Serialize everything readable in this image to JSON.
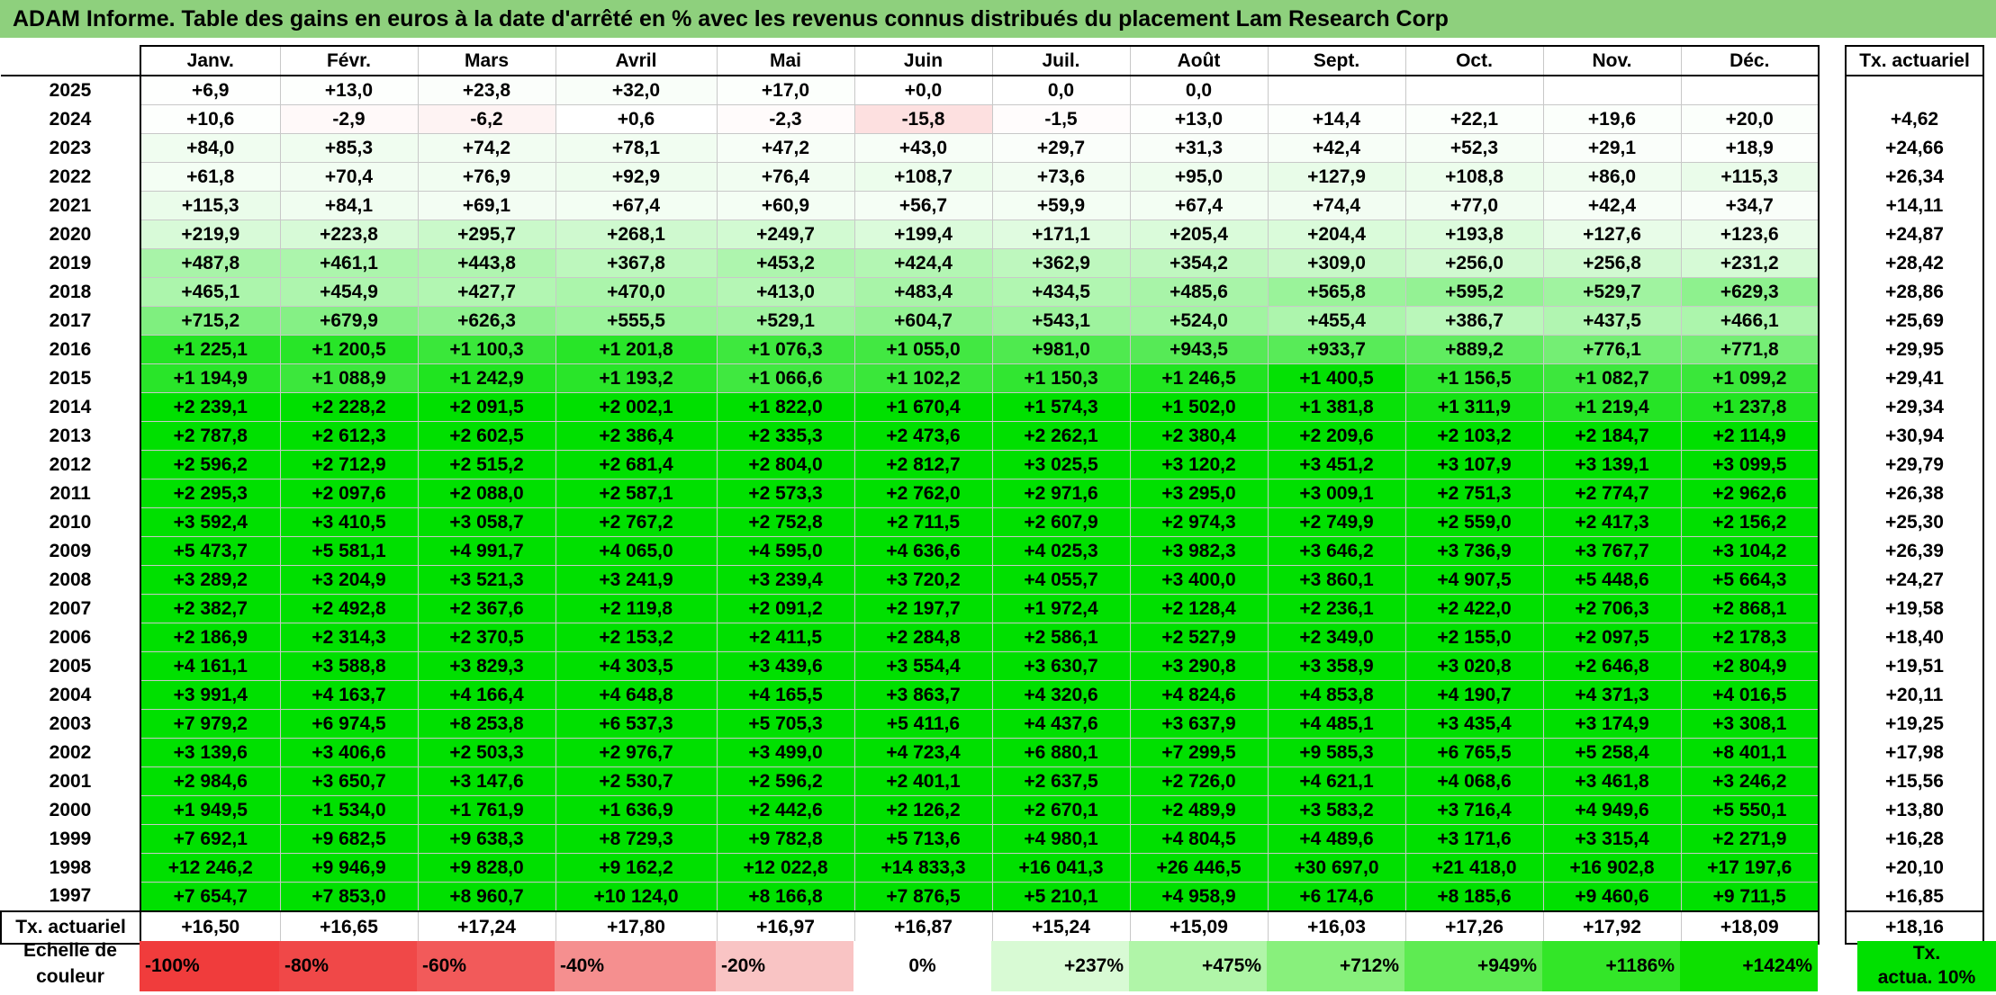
{
  "title": "ADAM Informe. Table des gains en euros à la date d'arrêté en % avec les revenus connus distribués du placement Lam Research Corp",
  "months": [
    "Janv.",
    "Févr.",
    "Mars",
    "Avril",
    "Mai",
    "Juin",
    "Juil.",
    "Août",
    "Sept.",
    "Oct.",
    "Nov.",
    "Déc."
  ],
  "tx_header": "Tx. actuariel",
  "rows": [
    {
      "year": "2025",
      "vals": [
        "+6,9",
        "+13,0",
        "+23,8",
        "+32,0",
        "+17,0",
        "+0,0",
        "0,0",
        "0,0",
        "",
        "",
        "",
        ""
      ],
      "tx": ""
    },
    {
      "year": "2024",
      "vals": [
        "+10,6",
        "-2,9",
        "-6,2",
        "+0,6",
        "-2,3",
        "-15,8",
        "-1,5",
        "+13,0",
        "+14,4",
        "+22,1",
        "+19,6",
        "+20,0"
      ],
      "tx": "+4,62"
    },
    {
      "year": "2023",
      "vals": [
        "+84,0",
        "+85,3",
        "+74,2",
        "+78,1",
        "+47,2",
        "+43,0",
        "+29,7",
        "+31,3",
        "+42,4",
        "+52,3",
        "+29,1",
        "+18,9"
      ],
      "tx": "+24,66"
    },
    {
      "year": "2022",
      "vals": [
        "+61,8",
        "+70,4",
        "+76,9",
        "+92,9",
        "+76,4",
        "+108,7",
        "+73,6",
        "+95,0",
        "+127,9",
        "+108,8",
        "+86,0",
        "+115,3"
      ],
      "tx": "+26,34"
    },
    {
      "year": "2021",
      "vals": [
        "+115,3",
        "+84,1",
        "+69,1",
        "+67,4",
        "+60,9",
        "+56,7",
        "+59,9",
        "+67,4",
        "+74,4",
        "+77,0",
        "+42,4",
        "+34,7"
      ],
      "tx": "+14,11"
    },
    {
      "year": "2020",
      "vals": [
        "+219,9",
        "+223,8",
        "+295,7",
        "+268,1",
        "+249,7",
        "+199,4",
        "+171,1",
        "+205,4",
        "+204,4",
        "+193,8",
        "+127,6",
        "+123,6"
      ],
      "tx": "+24,87"
    },
    {
      "year": "2019",
      "vals": [
        "+487,8",
        "+461,1",
        "+443,8",
        "+367,8",
        "+453,2",
        "+424,4",
        "+362,9",
        "+354,2",
        "+309,0",
        "+256,0",
        "+256,8",
        "+231,2"
      ],
      "tx": "+28,42"
    },
    {
      "year": "2018",
      "vals": [
        "+465,1",
        "+454,9",
        "+427,7",
        "+470,0",
        "+413,0",
        "+483,4",
        "+434,5",
        "+485,6",
        "+565,8",
        "+595,2",
        "+529,7",
        "+629,3"
      ],
      "tx": "+28,86"
    },
    {
      "year": "2017",
      "vals": [
        "+715,2",
        "+679,9",
        "+626,3",
        "+555,5",
        "+529,1",
        "+604,7",
        "+543,1",
        "+524,0",
        "+455,4",
        "+386,7",
        "+437,5",
        "+466,1"
      ],
      "tx": "+25,69"
    },
    {
      "year": "2016",
      "vals": [
        "+1 225,1",
        "+1 200,5",
        "+1 100,3",
        "+1 201,8",
        "+1 076,3",
        "+1 055,0",
        "+981,0",
        "+943,5",
        "+933,7",
        "+889,2",
        "+776,1",
        "+771,8"
      ],
      "tx": "+29,95"
    },
    {
      "year": "2015",
      "vals": [
        "+1 194,9",
        "+1 088,9",
        "+1 242,9",
        "+1 193,2",
        "+1 066,6",
        "+1 102,2",
        "+1 150,3",
        "+1 246,5",
        "+1 400,5",
        "+1 156,5",
        "+1 082,7",
        "+1 099,2"
      ],
      "tx": "+29,41"
    },
    {
      "year": "2014",
      "vals": [
        "+2 239,1",
        "+2 228,2",
        "+2 091,5",
        "+2 002,1",
        "+1 822,0",
        "+1 670,4",
        "+1 574,3",
        "+1 502,0",
        "+1 381,8",
        "+1 311,9",
        "+1 219,4",
        "+1 237,8"
      ],
      "tx": "+29,34"
    },
    {
      "year": "2013",
      "vals": [
        "+2 787,8",
        "+2 612,3",
        "+2 602,5",
        "+2 386,4",
        "+2 335,3",
        "+2 473,6",
        "+2 262,1",
        "+2 380,4",
        "+2 209,6",
        "+2 103,2",
        "+2 184,7",
        "+2 114,9"
      ],
      "tx": "+30,94"
    },
    {
      "year": "2012",
      "vals": [
        "+2 596,2",
        "+2 712,9",
        "+2 515,2",
        "+2 681,4",
        "+2 804,0",
        "+2 812,7",
        "+3 025,5",
        "+3 120,2",
        "+3 451,2",
        "+3 107,9",
        "+3 139,1",
        "+3 099,5"
      ],
      "tx": "+29,79"
    },
    {
      "year": "2011",
      "vals": [
        "+2 295,3",
        "+2 097,6",
        "+2 088,0",
        "+2 587,1",
        "+2 573,3",
        "+2 762,0",
        "+2 971,6",
        "+3 295,0",
        "+3 009,1",
        "+2 751,3",
        "+2 774,7",
        "+2 962,6"
      ],
      "tx": "+26,38"
    },
    {
      "year": "2010",
      "vals": [
        "+3 592,4",
        "+3 410,5",
        "+3 058,7",
        "+2 767,2",
        "+2 752,8",
        "+2 711,5",
        "+2 607,9",
        "+2 974,3",
        "+2 749,9",
        "+2 559,0",
        "+2 417,3",
        "+2 156,2"
      ],
      "tx": "+25,30"
    },
    {
      "year": "2009",
      "vals": [
        "+5 473,7",
        "+5 581,1",
        "+4 991,7",
        "+4 065,0",
        "+4 595,0",
        "+4 636,6",
        "+4 025,3",
        "+3 982,3",
        "+3 646,2",
        "+3 736,9",
        "+3 767,7",
        "+3 104,2"
      ],
      "tx": "+26,39"
    },
    {
      "year": "2008",
      "vals": [
        "+3 289,2",
        "+3 204,9",
        "+3 521,3",
        "+3 241,9",
        "+3 239,4",
        "+3 720,2",
        "+4 055,7",
        "+3 400,0",
        "+3 860,1",
        "+4 907,5",
        "+5 448,6",
        "+5 664,3"
      ],
      "tx": "+24,27"
    },
    {
      "year": "2007",
      "vals": [
        "+2 382,7",
        "+2 492,8",
        "+2 367,6",
        "+2 119,8",
        "+2 091,2",
        "+2 197,7",
        "+1 972,4",
        "+2 128,4",
        "+2 236,1",
        "+2 422,0",
        "+2 706,3",
        "+2 868,1"
      ],
      "tx": "+19,58"
    },
    {
      "year": "2006",
      "vals": [
        "+2 186,9",
        "+2 314,3",
        "+2 370,5",
        "+2 153,2",
        "+2 411,5",
        "+2 284,8",
        "+2 586,1",
        "+2 527,9",
        "+2 349,0",
        "+2 155,0",
        "+2 097,5",
        "+2 178,3"
      ],
      "tx": "+18,40"
    },
    {
      "year": "2005",
      "vals": [
        "+4 161,1",
        "+3 588,8",
        "+3 829,3",
        "+4 303,5",
        "+3 439,6",
        "+3 554,4",
        "+3 630,7",
        "+3 290,8",
        "+3 358,9",
        "+3 020,8",
        "+2 646,8",
        "+2 804,9"
      ],
      "tx": "+19,51"
    },
    {
      "year": "2004",
      "vals": [
        "+3 991,4",
        "+4 163,7",
        "+4 166,4",
        "+4 648,8",
        "+4 165,5",
        "+3 863,7",
        "+4 320,6",
        "+4 824,6",
        "+4 853,8",
        "+4 190,7",
        "+4 371,3",
        "+4 016,5"
      ],
      "tx": "+20,11"
    },
    {
      "year": "2003",
      "vals": [
        "+7 979,2",
        "+6 974,5",
        "+8 253,8",
        "+6 537,3",
        "+5 705,3",
        "+5 411,6",
        "+4 437,6",
        "+3 637,9",
        "+4 485,1",
        "+3 435,4",
        "+3 174,9",
        "+3 308,1"
      ],
      "tx": "+19,25"
    },
    {
      "year": "2002",
      "vals": [
        "+3 139,6",
        "+3 406,6",
        "+2 503,3",
        "+2 976,7",
        "+3 499,0",
        "+4 723,4",
        "+6 880,1",
        "+7 299,5",
        "+9 585,3",
        "+6 765,5",
        "+5 258,4",
        "+8 401,1"
      ],
      "tx": "+17,98"
    },
    {
      "year": "2001",
      "vals": [
        "+2 984,6",
        "+3 650,7",
        "+3 147,6",
        "+2 530,7",
        "+2 596,2",
        "+2 401,1",
        "+2 637,5",
        "+2 726,0",
        "+4 621,1",
        "+4 068,6",
        "+3 461,8",
        "+3 246,2"
      ],
      "tx": "+15,56"
    },
    {
      "year": "2000",
      "vals": [
        "+1 949,5",
        "+1 534,0",
        "+1 761,9",
        "+1 636,9",
        "+2 442,6",
        "+2 126,2",
        "+2 670,1",
        "+2 489,9",
        "+3 583,2",
        "+3 716,4",
        "+4 949,6",
        "+5 550,1"
      ],
      "tx": "+13,80"
    },
    {
      "year": "1999",
      "vals": [
        "+7 692,1",
        "+9 682,5",
        "+9 638,3",
        "+8 729,3",
        "+9 782,8",
        "+5 713,6",
        "+4 980,1",
        "+4 804,5",
        "+4 489,6",
        "+3 171,6",
        "+3 315,4",
        "+2 271,9"
      ],
      "tx": "+16,28"
    },
    {
      "year": "1998",
      "vals": [
        "+12 246,2",
        "+9 946,9",
        "+9 828,0",
        "+9 162,2",
        "+12 022,8",
        "+14 833,3",
        "+16 041,3",
        "+26 446,5",
        "+30 697,0",
        "+21 418,0",
        "+16 902,8",
        "+17 197,6"
      ],
      "tx": "+20,10"
    },
    {
      "year": "1997",
      "vals": [
        "+7 654,7",
        "+7 853,0",
        "+8 960,7",
        "+10 124,0",
        "+8 166,8",
        "+7 876,5",
        "+5 210,1",
        "+4 958,9",
        "+6 174,6",
        "+8 185,6",
        "+9 460,6",
        "+9 711,5"
      ],
      "tx": "+16,85"
    }
  ],
  "summary": {
    "label": "Tx. actuariel",
    "vals": [
      "+16,50",
      "+16,65",
      "+17,24",
      "+17,80",
      "+16,97",
      "+16,87",
      "+15,24",
      "+15,09",
      "+16,03",
      "+17,26",
      "+17,92",
      "+18,09"
    ],
    "tx": "+18,16"
  },
  "scale": {
    "label_line1": "Echelle de",
    "label_line2": "couleur",
    "cells": [
      {
        "text": "-100%",
        "color": "#f03c3c",
        "align": "left"
      },
      {
        "text": "-80%",
        "color": "#f04848",
        "align": "left"
      },
      {
        "text": "-60%",
        "color": "#f25a5a",
        "align": "left"
      },
      {
        "text": "-40%",
        "color": "#f58f8f",
        "align": "left"
      },
      {
        "text": "-20%",
        "color": "#f9c4c4",
        "align": "left"
      },
      {
        "text": "0%",
        "color": "#ffffff",
        "align": "center"
      },
      {
        "text": "+237%",
        "color": "#d8fad4",
        "align": "right"
      },
      {
        "text": "+475%",
        "color": "#b0f5a8",
        "align": "right"
      },
      {
        "text": "+712%",
        "color": "#88f07c",
        "align": "right"
      },
      {
        "text": "+949%",
        "color": "#5eeb52",
        "align": "right"
      },
      {
        "text": "+1186%",
        "color": "#33e628",
        "align": "right"
      },
      {
        "text": "+1424%",
        "color": "#0de000",
        "align": "right"
      }
    ],
    "tx_line1": "Tx.",
    "tx_line2": "actua. 10%"
  }
}
